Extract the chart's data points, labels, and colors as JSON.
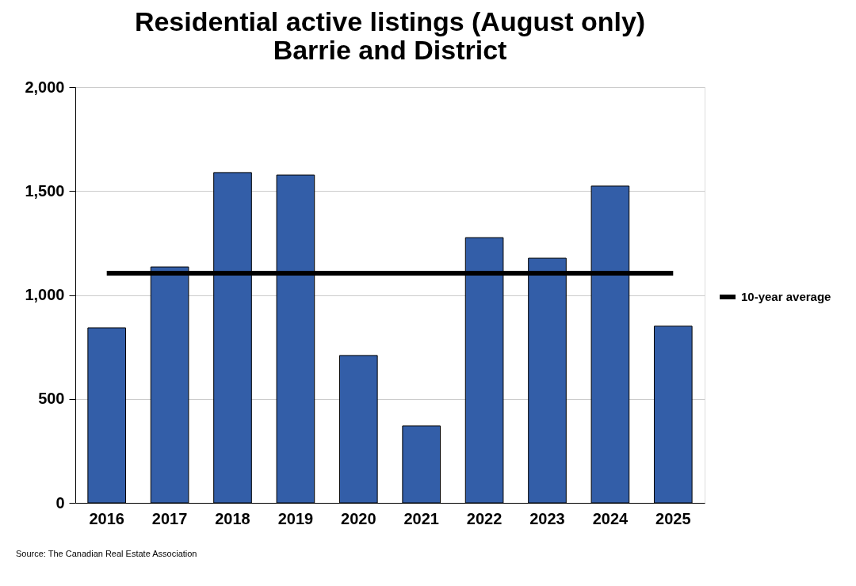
{
  "chart_data": {
    "type": "bar",
    "title": "Residential active listings (August only)\nBarrie and District",
    "categories": [
      "2016",
      "2017",
      "2018",
      "2019",
      "2020",
      "2021",
      "2022",
      "2023",
      "2024",
      "2025"
    ],
    "series": [
      {
        "color": "#335ea8",
        "values": [
          842,
          1135,
          1589,
          1577,
          709,
          370,
          1276,
          1177,
          1524,
          850
        ]
      },
      {
        "type": "line",
        "name": "10-year average",
        "color": "#000000",
        "values": [
          1105,
          1105,
          1105,
          1105,
          1105,
          1105,
          1105,
          1105,
          1105,
          1105
        ]
      }
    ],
    "ylim": [
      0,
      2000
    ],
    "yticks": [
      {
        "value": 0,
        "label": "0"
      },
      {
        "value": 500,
        "label": "500"
      },
      {
        "value": 1000,
        "label": "1,000"
      },
      {
        "value": 1500,
        "label": "1,500"
      },
      {
        "value": 2000,
        "label": "2,000"
      }
    ],
    "grid": "y",
    "legend": "right",
    "annotations": [
      "Source: The Canadian Real Estate Association"
    ]
  }
}
